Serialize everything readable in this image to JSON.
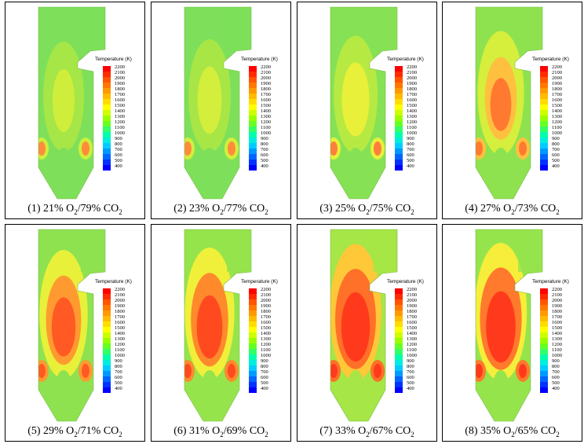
{
  "legend": {
    "title": "Temperature (K)",
    "levels": [
      "2200",
      "2100",
      "2000",
      "1900",
      "1800",
      "1700",
      "1600",
      "1500",
      "1400",
      "1300",
      "1200",
      "1100",
      "1000",
      "900",
      "800",
      "700",
      "600",
      "500",
      "400"
    ],
    "colors": [
      "#ff0000",
      "#ff2a00",
      "#ff5500",
      "#ff7700",
      "#ff9900",
      "#ffbb00",
      "#ffdd00",
      "#ffff00",
      "#ccff00",
      "#99ff00",
      "#66ff22",
      "#33ff66",
      "#00ffaa",
      "#00eedd",
      "#00ccff",
      "#0099ff",
      "#0066ff",
      "#0033ff",
      "#0000ff"
    ]
  },
  "panels": [
    {
      "prefix": "(1) 21% O",
      "mid": "/79% CO",
      "sub": "2",
      "palette": [
        "#7ee05a",
        "#a6e646",
        "#cfee3c",
        "#ff8c3a"
      ],
      "heat": 0
    },
    {
      "prefix": "(2) 23% O",
      "mid": "/77% CO",
      "sub": "2",
      "palette": [
        "#7ee05a",
        "#a8e646",
        "#d4ee3c",
        "#ff8c3a"
      ],
      "heat": 0.1
    },
    {
      "prefix": "(3) 25% O",
      "mid": "/75% CO",
      "sub": "2",
      "palette": [
        "#86e254",
        "#b6ea42",
        "#e8f03a",
        "#ff7f3a"
      ],
      "heat": 0.25
    },
    {
      "prefix": "(4) 27% O",
      "mid": "/73% CO",
      "sub": "2",
      "palette": [
        "#8ee250",
        "#d6ee3c",
        "#ffc040",
        "#ff7a30"
      ],
      "heat": 0.45
    },
    {
      "prefix": "(5) 29% O",
      "mid": "/71% CO",
      "sub": "2",
      "palette": [
        "#8ee250",
        "#e8f03a",
        "#ff9a30",
        "#ff5a24"
      ],
      "heat": 0.6
    },
    {
      "prefix": "(6) 31% O",
      "mid": "/69% CO",
      "sub": "2",
      "palette": [
        "#96e44c",
        "#f0f03a",
        "#ff8a2c",
        "#ff4a20"
      ],
      "heat": 0.7
    },
    {
      "prefix": "(7) 33% O",
      "mid": "/67% CO",
      "sub": "2",
      "palette": [
        "#a6e646",
        "#ffc838",
        "#ff7028",
        "#ff3a1c"
      ],
      "heat": 0.85
    },
    {
      "prefix": "(8) 35% O",
      "mid": "/65% CO",
      "sub": "2",
      "palette": [
        "#96e44c",
        "#f6ee3a",
        "#ff7a2c",
        "#ff3a1c"
      ],
      "heat": 0.9
    }
  ]
}
